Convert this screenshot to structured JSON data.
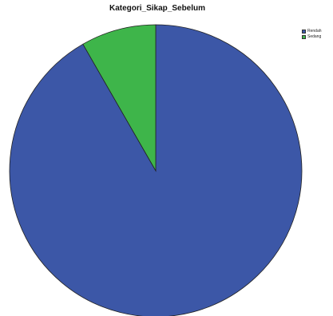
{
  "chart_data": {
    "type": "pie",
    "title": "Kategori_Sikap_Sebelum",
    "categories": [
      "Rendah",
      "Sedang"
    ],
    "values": [
      91.7,
      8.3
    ],
    "colors": [
      "#3c57a7",
      "#3eb54a"
    ],
    "start_angle_deg": 0,
    "direction": "counterclockwise-for-second-slice",
    "legend_position": "top-right",
    "edge_color": "#222222"
  }
}
